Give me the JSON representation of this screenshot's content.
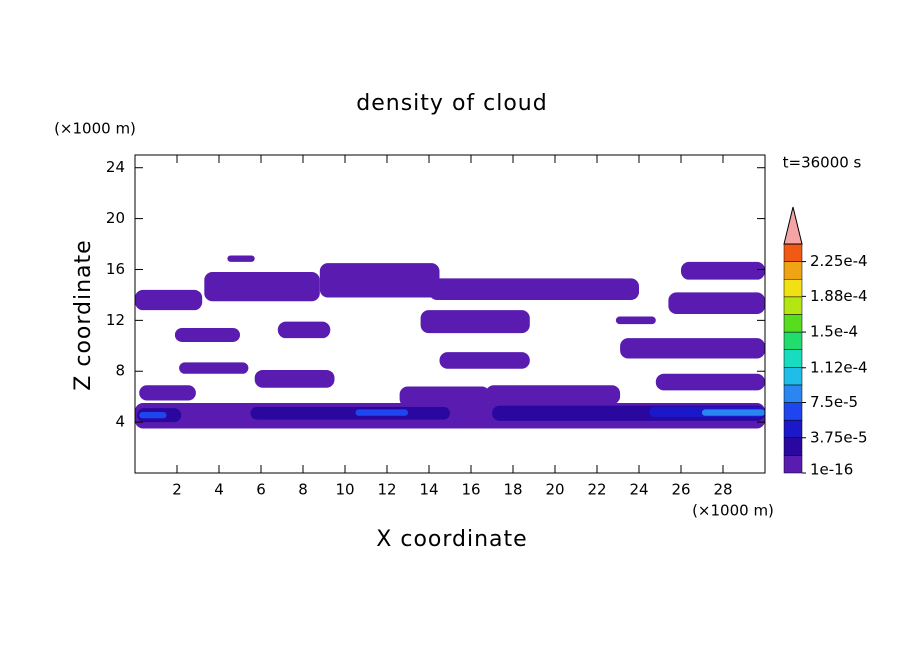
{
  "chart_data": {
    "type": "contour",
    "title": "density of cloud",
    "xlabel": "X coordinate",
    "ylabel": "Z coordinate",
    "xunit": "(×1000 m)",
    "yunit": "(×1000 m)",
    "time_label": "t=36000 s",
    "xlim": [
      0,
      30
    ],
    "xticks": [
      2,
      4,
      6,
      8,
      10,
      12,
      14,
      16,
      18,
      20,
      22,
      24,
      26,
      28
    ],
    "ylim": [
      0,
      25
    ],
    "yticks": [
      4,
      8,
      12,
      16,
      20,
      24
    ],
    "clim": [
      1e-16,
      0.00024375
    ],
    "colors": [
      "#5a1cb0",
      "#2a08a0",
      "#1a18c8",
      "#1f45ef",
      "#2b86f2",
      "#1fbde8",
      "#18dcc0",
      "#22dc6e",
      "#56de1e",
      "#b4e614",
      "#f0e014",
      "#f0a414",
      "#f05a14"
    ],
    "extend_color": "#f4a4a4",
    "cticks": [
      {
        "value": 1e-16,
        "label": "1e-16"
      },
      {
        "value": 3.75e-05,
        "label": "3.75e-5"
      },
      {
        "value": 7.5e-05,
        "label": "7.5e-5"
      },
      {
        "value": 0.000112,
        "label": "1.12e-4"
      },
      {
        "value": 0.00015,
        "label": "1.5e-4"
      },
      {
        "value": 0.000188,
        "label": "1.88e-4"
      },
      {
        "value": 0.000225,
        "label": "2.25e-4"
      }
    ],
    "regions": [
      {
        "x": [
          0,
          3.2
        ],
        "z": [
          12.8,
          14.4
        ],
        "value": 1e-05
      },
      {
        "x": [
          3.3,
          8.8
        ],
        "z": [
          13.5,
          15.8
        ],
        "value": 1e-05
      },
      {
        "x": [
          4.4,
          5.7
        ],
        "z": [
          16.6,
          17.1
        ],
        "value": 1e-05
      },
      {
        "x": [
          8.8,
          14.5
        ],
        "z": [
          13.8,
          16.5
        ],
        "value": 1e-05
      },
      {
        "x": [
          14,
          24
        ],
        "z": [
          13.6,
          15.3
        ],
        "value": 1e-05
      },
      {
        "x": [
          26,
          30
        ],
        "z": [
          15.2,
          16.6
        ],
        "value": 1e-05
      },
      {
        "x": [
          25.4,
          30
        ],
        "z": [
          12.5,
          14.2
        ],
        "value": 1e-05
      },
      {
        "x": [
          1.9,
          5
        ],
        "z": [
          10.3,
          11.4
        ],
        "value": 1e-05
      },
      {
        "x": [
          6.8,
          9.3
        ],
        "z": [
          10.6,
          11.9
        ],
        "value": 1e-05
      },
      {
        "x": [
          13.6,
          18.8
        ],
        "z": [
          11,
          12.8
        ],
        "value": 1e-05
      },
      {
        "x": [
          22.9,
          24.8
        ],
        "z": [
          11.7,
          12.3
        ],
        "value": 1e-05
      },
      {
        "x": [
          23.1,
          30
        ],
        "z": [
          9,
          10.6
        ],
        "value": 1e-05
      },
      {
        "x": [
          2.1,
          5.4
        ],
        "z": [
          7.8,
          8.7
        ],
        "value": 1e-05
      },
      {
        "x": [
          14.5,
          18.8
        ],
        "z": [
          8.2,
          9.5
        ],
        "value": 1e-05
      },
      {
        "x": [
          5.7,
          9.5
        ],
        "z": [
          6.7,
          8.1
        ],
        "value": 1e-05
      },
      {
        "x": [
          24.8,
          30
        ],
        "z": [
          6.5,
          7.8
        ],
        "value": 1e-05
      },
      {
        "x": [
          0.2,
          2.9
        ],
        "z": [
          5.7,
          6.9
        ],
        "value": 1e-05
      },
      {
        "x": [
          12.6,
          16.9
        ],
        "z": [
          5.2,
          6.8
        ],
        "value": 1e-05
      },
      {
        "x": [
          16.7,
          23.1
        ],
        "z": [
          5.4,
          6.9
        ],
        "value": 1e-05
      },
      {
        "x": [
          0,
          30
        ],
        "z": [
          3.5,
          5.5
        ],
        "value": 1e-05
      },
      {
        "x": [
          0.1,
          2.2
        ],
        "z": [
          4,
          5.1
        ],
        "value": 2.8e-05
      },
      {
        "x": [
          5.5,
          15
        ],
        "z": [
          4.2,
          5.2
        ],
        "value": 2.8e-05
      },
      {
        "x": [
          17,
          30
        ],
        "z": [
          4.1,
          5.3
        ],
        "value": 2.8e-05
      },
      {
        "x": [
          24.5,
          30
        ],
        "z": [
          4.4,
          5.2
        ],
        "value": 4.7e-05
      },
      {
        "x": [
          10.5,
          13
        ],
        "z": [
          4.5,
          5
        ],
        "value": 6.5e-05
      },
      {
        "x": [
          0.2,
          1.5
        ],
        "z": [
          4.3,
          4.8
        ],
        "value": 6.5e-05
      },
      {
        "x": [
          27,
          30
        ],
        "z": [
          4.5,
          5
        ],
        "value": 8.4e-05
      }
    ]
  }
}
